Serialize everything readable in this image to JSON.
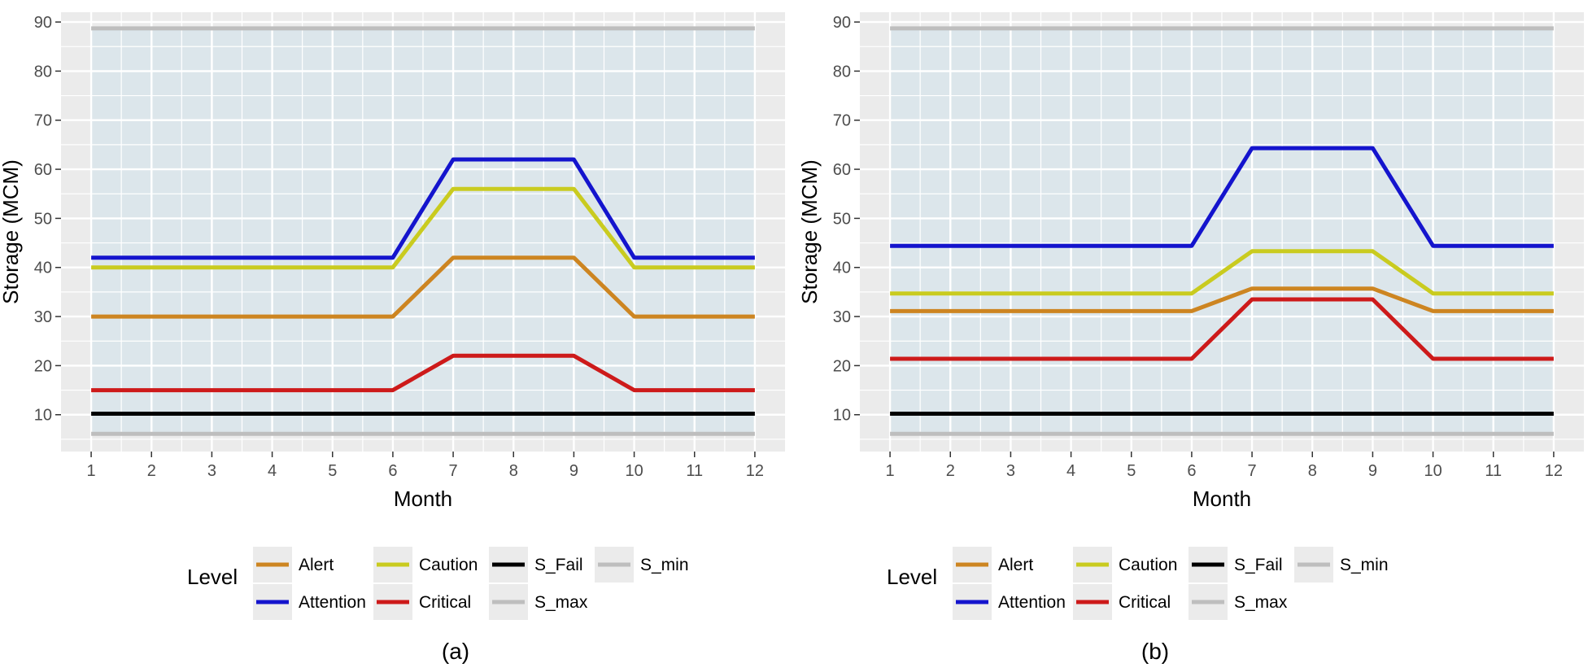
{
  "chart_data": [
    {
      "type": "line",
      "panel_label": "(a)",
      "xlabel": "Month",
      "ylabel": "Storage (MCM)",
      "x": [
        1,
        2,
        3,
        4,
        5,
        6,
        7,
        8,
        9,
        10,
        11,
        12
      ],
      "xlim": [
        0.5,
        12.5
      ],
      "ylim": [
        2.5,
        92
      ],
      "yticks": [
        10,
        20,
        30,
        40,
        50,
        60,
        70,
        80,
        90
      ],
      "grid": true,
      "legend_position": "bottom",
      "legend_title": "Level",
      "series": [
        {
          "name": "S_max",
          "color": "#bebebe",
          "values": [
            88.7,
            88.7,
            88.7,
            88.7,
            88.7,
            88.7,
            88.7,
            88.7,
            88.7,
            88.7,
            88.7,
            88.7
          ]
        },
        {
          "name": "S_min",
          "color": "#bebebe",
          "values": [
            6.1,
            6.1,
            6.1,
            6.1,
            6.1,
            6.1,
            6.1,
            6.1,
            6.1,
            6.1,
            6.1,
            6.1
          ]
        },
        {
          "name": "S_Fail",
          "color": "#000000",
          "values": [
            10.2,
            10.2,
            10.2,
            10.2,
            10.2,
            10.2,
            10.2,
            10.2,
            10.2,
            10.2,
            10.2,
            10.2
          ]
        },
        {
          "name": "Critical",
          "color": "#cd1a1a",
          "values": [
            15,
            15,
            15,
            15,
            15,
            15,
            22,
            22,
            22,
            15,
            15,
            15
          ]
        },
        {
          "name": "Alert",
          "color": "#cd8521",
          "values": [
            30,
            30,
            30,
            30,
            30,
            30,
            42,
            42,
            42,
            30,
            30,
            30
          ]
        },
        {
          "name": "Caution",
          "color": "#c9cb1f",
          "values": [
            40,
            40,
            40,
            40,
            40,
            40,
            56,
            56,
            56,
            40,
            40,
            40
          ]
        },
        {
          "name": "Attention",
          "color": "#1414cd",
          "values": [
            42,
            42,
            42,
            42,
            42,
            42,
            62,
            62,
            62,
            42,
            42,
            42
          ]
        }
      ]
    },
    {
      "type": "line",
      "panel_label": "(b)",
      "xlabel": "Month",
      "ylabel": "Storage (MCM)",
      "x": [
        1,
        2,
        3,
        4,
        5,
        6,
        7,
        8,
        9,
        10,
        11,
        12
      ],
      "xlim": [
        0.5,
        12.5
      ],
      "ylim": [
        2.5,
        92
      ],
      "yticks": [
        10,
        20,
        30,
        40,
        50,
        60,
        70,
        80,
        90
      ],
      "grid": true,
      "legend_position": "bottom",
      "legend_title": "Level",
      "series": [
        {
          "name": "S_max",
          "color": "#bebebe",
          "values": [
            88.7,
            88.7,
            88.7,
            88.7,
            88.7,
            88.7,
            88.7,
            88.7,
            88.7,
            88.7,
            88.7,
            88.7
          ]
        },
        {
          "name": "S_min",
          "color": "#bebebe",
          "values": [
            6.1,
            6.1,
            6.1,
            6.1,
            6.1,
            6.1,
            6.1,
            6.1,
            6.1,
            6.1,
            6.1,
            6.1
          ]
        },
        {
          "name": "S_Fail",
          "color": "#000000",
          "values": [
            10.2,
            10.2,
            10.2,
            10.2,
            10.2,
            10.2,
            10.2,
            10.2,
            10.2,
            10.2,
            10.2,
            10.2
          ]
        },
        {
          "name": "Critical",
          "color": "#cd1a1a",
          "values": [
            21.4,
            21.4,
            21.4,
            21.4,
            21.4,
            21.4,
            33.5,
            33.5,
            33.5,
            21.4,
            21.4,
            21.4
          ]
        },
        {
          "name": "Alert",
          "color": "#cd8521",
          "values": [
            31.1,
            31.1,
            31.1,
            31.1,
            31.1,
            31.1,
            35.7,
            35.7,
            35.7,
            31.1,
            31.1,
            31.1
          ]
        },
        {
          "name": "Caution",
          "color": "#c9cb1f",
          "values": [
            34.7,
            34.7,
            34.7,
            34.7,
            34.7,
            34.7,
            43.3,
            43.3,
            43.3,
            34.7,
            34.7,
            34.7
          ]
        },
        {
          "name": "Attention",
          "color": "#1414cd",
          "values": [
            44.4,
            44.4,
            44.4,
            44.4,
            44.4,
            44.4,
            64.3,
            64.3,
            64.3,
            44.4,
            44.4,
            44.4
          ]
        }
      ]
    }
  ],
  "legend": {
    "title": "Level",
    "items": [
      {
        "name": "Alert",
        "color": "#cd8521"
      },
      {
        "name": "Attention",
        "color": "#1414cd"
      },
      {
        "name": "Caution",
        "color": "#c9cb1f"
      },
      {
        "name": "Critical",
        "color": "#cd1a1a"
      },
      {
        "name": "S_Fail",
        "color": "#000000"
      },
      {
        "name": "S_max",
        "color": "#bebebe"
      },
      {
        "name": "S_min",
        "color": "#bebebe"
      }
    ]
  },
  "colors": {
    "plot_background": "#ebebeb",
    "shaded_region": "#dce6eb",
    "gridline": "#ffffff"
  }
}
